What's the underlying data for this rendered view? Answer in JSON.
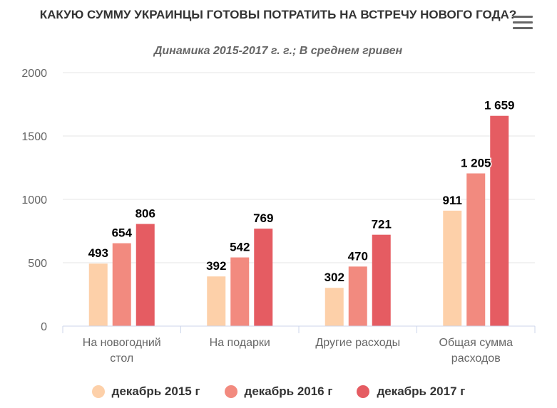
{
  "chart_data": {
    "type": "bar",
    "title": "КАКУЮ СУММУ УКРАИНЦЫ ГОТОВЫ ПОТРАТИТЬ НА ВСТРЕЧУ НОВОГО ГОДА?",
    "subtitle": "Динамика 2015-2017 г. г.; В среднем гривен",
    "categories": [
      "На новогодний стол",
      "На подарки",
      "Другие расходы",
      "Общая сумма расходов"
    ],
    "series": [
      {
        "name": "декабрь 2015 г",
        "values": [
          493,
          392,
          302,
          911
        ],
        "labels": [
          "493",
          "392",
          "302",
          "911"
        ],
        "color": "#fdd0a9"
      },
      {
        "name": "декабрь 2016 г",
        "values": [
          654,
          542,
          470,
          1205
        ],
        "labels": [
          "654",
          "542",
          "470",
          "1 205"
        ],
        "color": "#f28a7f"
      },
      {
        "name": "декабрь 2017 г",
        "values": [
          806,
          769,
          721,
          1659
        ],
        "labels": [
          "806",
          "769",
          "721",
          "1 659"
        ],
        "color": "#e55c62"
      }
    ],
    "yticks": [
      "0",
      "500",
      "1000",
      "1500",
      "2000"
    ],
    "ylim": [
      0,
      2000
    ],
    "xlabel": "",
    "ylabel": "",
    "grid": true,
    "legend": "bottom"
  },
  "menu_icon": "hamburger-menu-icon"
}
